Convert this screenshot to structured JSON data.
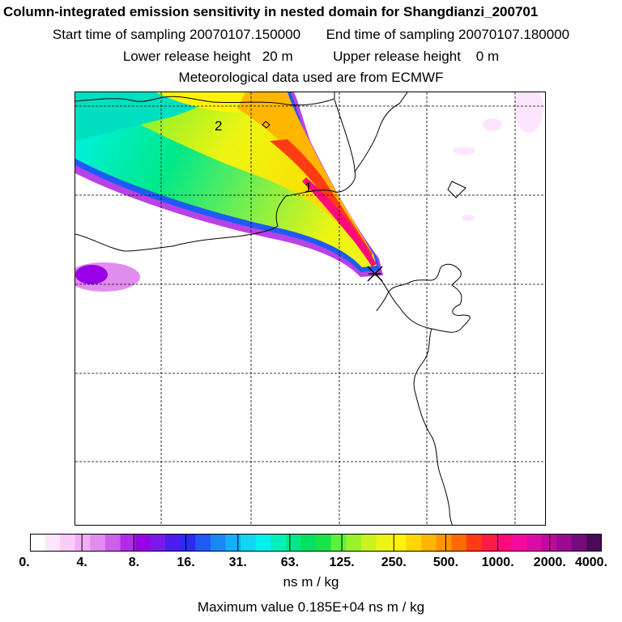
{
  "header": {
    "title": "Column-integrated emission sensitivity in nested domain for Shangdianzi_200701",
    "start_label": "Start time of sampling 20070107.150000",
    "end_label": "End time of sampling 20070107.180000",
    "lower_label": "Lower release height   20 m",
    "upper_label": "Upper release height    0 m",
    "met_label": "Meteorological data used are from ECMWF"
  },
  "map": {
    "markers": [
      {
        "label": "1"
      },
      {
        "label": "2"
      }
    ]
  },
  "colorbar": {
    "labels": [
      "0.",
      "4.",
      "8.",
      "16.",
      "31.",
      "63.",
      "125.",
      "250.",
      "500.",
      "1000.",
      "2000.",
      "4000."
    ],
    "colors": [
      "#ffffff",
      "#fde6fd",
      "#f9ccfa",
      "#f1aef4",
      "#e18cef",
      "#cd5fea",
      "#b02de6",
      "#9900e6",
      "#7a1ae8",
      "#4b1ef0",
      "#2a2cf5",
      "#1f5af5",
      "#1b86f5",
      "#16aef5",
      "#10d6f2",
      "#00f2ee",
      "#00f0b9",
      "#00e88a",
      "#00e05d",
      "#1ae34a",
      "#5cf03a",
      "#9af22c",
      "#c9f21e",
      "#eef512",
      "#fff20a",
      "#ffd700",
      "#ffb600",
      "#ff9500",
      "#ff6b00",
      "#ff3c14",
      "#ff1a45",
      "#ff0a7a",
      "#f50aa0",
      "#dc0aa8",
      "#bd0a9c",
      "#9a0a90",
      "#760a7c",
      "#4a0a58"
    ],
    "units": "ns m / kg"
  },
  "footer": {
    "max_value": "Maximum value  0.185E+04 ns m / kg"
  }
}
